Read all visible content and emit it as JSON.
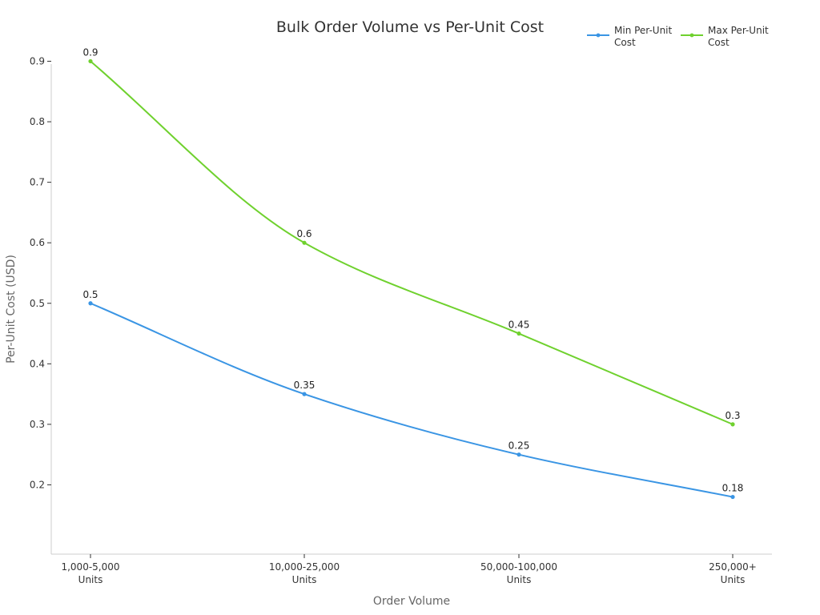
{
  "chart_data": {
    "type": "line",
    "title": "Bulk Order Volume vs Per-Unit Cost",
    "xlabel": "Order Volume",
    "ylabel": "Per-Unit Cost (USD)",
    "categories": [
      [
        "1,000-5,000",
        "Units"
      ],
      [
        "10,000-25,000",
        "Units"
      ],
      [
        "50,000-100,000",
        "Units"
      ],
      [
        "250,000+",
        "Units"
      ]
    ],
    "ylim": [
      0.15,
      0.95
    ],
    "yticks": [
      "0.2",
      "0.3",
      "0.4",
      "0.5",
      "0.6",
      "0.7",
      "0.8",
      "0.9"
    ],
    "grid": false,
    "legend_position": "top-right",
    "series": [
      {
        "name": [
          "Min Per-Unit",
          "Cost"
        ],
        "color": "#3a95e4",
        "values": [
          0.5,
          0.35,
          0.25,
          0.18
        ],
        "labels": [
          "0.5",
          "0.35",
          "0.25",
          "0.18"
        ]
      },
      {
        "name": [
          "Max Per-Unit",
          "Cost"
        ],
        "color": "#6fd12e",
        "values": [
          0.9,
          0.6,
          0.45,
          0.3
        ],
        "labels": [
          "0.9",
          "0.6",
          "0.45",
          "0.3"
        ]
      }
    ]
  }
}
